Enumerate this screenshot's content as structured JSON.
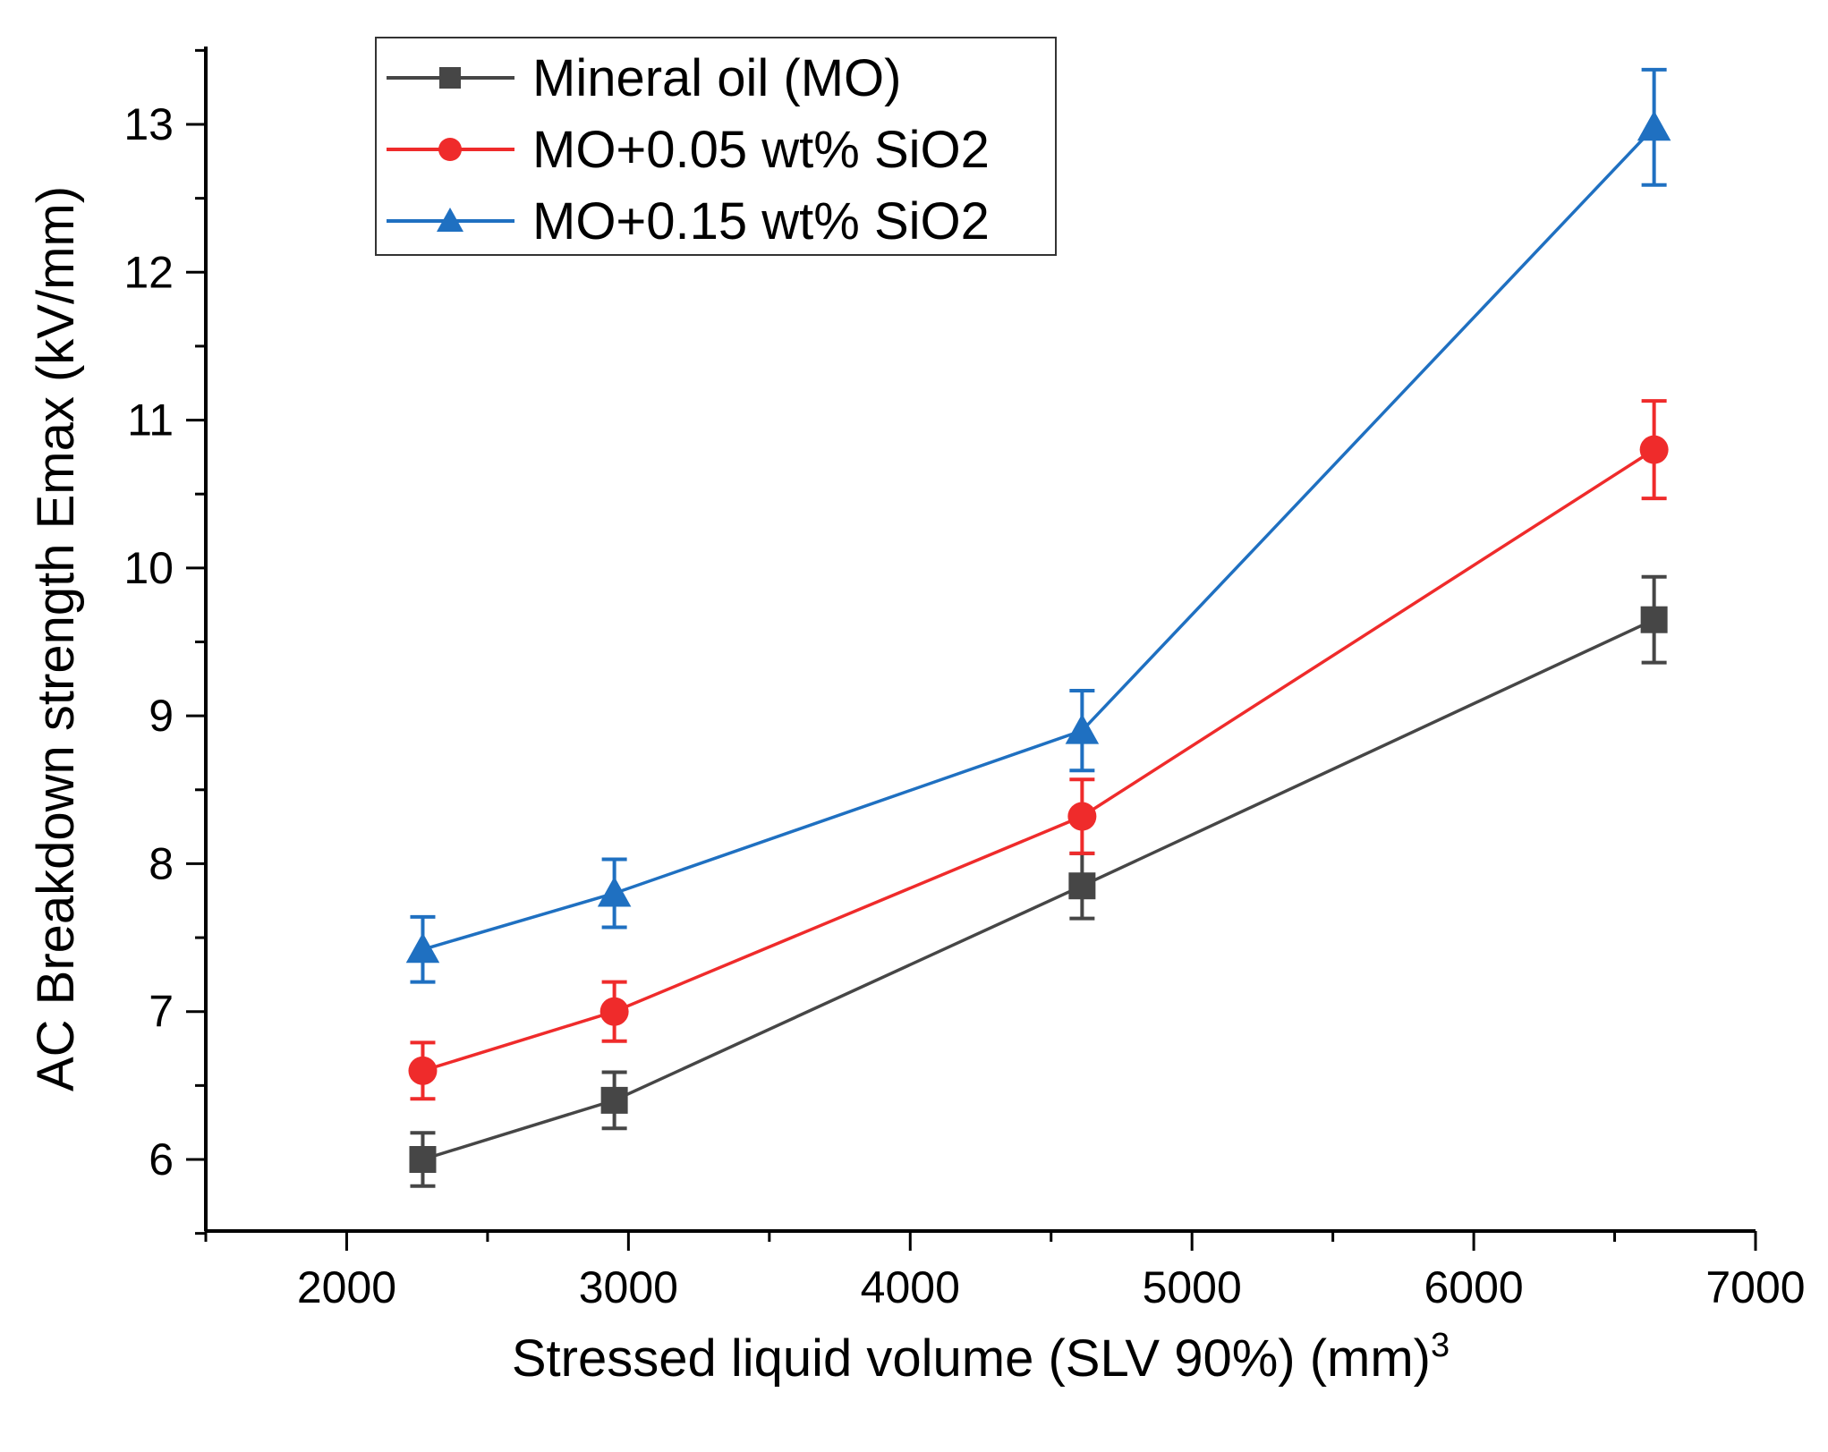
{
  "chart_data": {
    "type": "line",
    "title": "",
    "xlabel": "Stressed liquid volume (SLV 90%) (mm)",
    "xlabel_superscript": "3",
    "ylabel": "AC Breakdown strength Emax (kV/mm)",
    "xlim": [
      1500,
      7000
    ],
    "ylim": [
      5.5,
      13.5
    ],
    "x_ticks": [
      2000,
      3000,
      4000,
      5000,
      6000,
      7000
    ],
    "y_ticks": [
      6,
      7,
      8,
      9,
      10,
      11,
      12,
      13
    ],
    "grid": false,
    "legend_position": "top-left",
    "x": [
      2270,
      2950,
      4610,
      6640
    ],
    "series": [
      {
        "name": "Mineral oil (MO)",
        "color": "#464646",
        "marker": "square",
        "values": [
          6.0,
          6.4,
          7.85,
          9.65
        ],
        "errors": [
          0.18,
          0.19,
          0.22,
          0.29
        ]
      },
      {
        "name": "MO+0.05 wt% SiO2",
        "color": "#ef2b2b",
        "marker": "circle",
        "values": [
          6.6,
          7.0,
          8.32,
          10.8
        ],
        "errors": [
          0.19,
          0.2,
          0.25,
          0.33
        ]
      },
      {
        "name": "MO+0.15 wt% SiO2",
        "color": "#1f70c1",
        "marker": "triangle",
        "values": [
          7.42,
          7.8,
          8.9,
          12.98
        ],
        "errors": [
          0.22,
          0.23,
          0.27,
          0.39
        ]
      }
    ]
  }
}
